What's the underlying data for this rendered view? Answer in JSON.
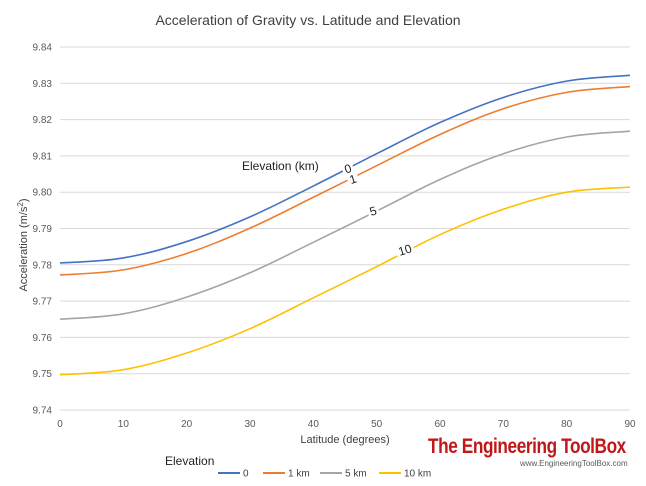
{
  "chart_data": {
    "type": "line",
    "title": "Acceleration of Gravity vs. Latitude and Elevation",
    "xlabel": "Latitude  (degrees)",
    "ylabel_main": "Acceleration  (m/s",
    "ylabel_sup": "2",
    "ylabel_end": ")",
    "xlim": [
      0,
      90
    ],
    "ylim": [
      9.74,
      9.84
    ],
    "xticks": [
      "0",
      "10",
      "20",
      "30",
      "40",
      "50",
      "60",
      "70",
      "80",
      "90"
    ],
    "yticks": [
      "9.74",
      "9.75",
      "9.76",
      "9.77",
      "9.78",
      "9.79",
      "9.80",
      "9.81",
      "9.82",
      "9.83",
      "9.84"
    ],
    "grid": "horizontal",
    "x": [
      0,
      10,
      20,
      30,
      40,
      50,
      60,
      70,
      80,
      90
    ],
    "series": [
      {
        "name": "0",
        "color": "#4472c4",
        "values": [
          9.7805,
          9.7819,
          9.7864,
          9.7932,
          9.8017,
          9.8106,
          9.8192,
          9.8261,
          9.8306,
          9.8322
        ]
      },
      {
        "name": "1 km",
        "color": "#ed7d31",
        "values": [
          9.7772,
          9.7786,
          9.7831,
          9.7901,
          9.7986,
          9.8073,
          9.8159,
          9.823,
          9.8275,
          9.8291
        ]
      },
      {
        "name": "5 km",
        "color": "#a5a5a5",
        "values": [
          9.765,
          9.7665,
          9.7711,
          9.7778,
          9.7862,
          9.7948,
          9.8035,
          9.8106,
          9.8152,
          9.8168
        ]
      },
      {
        "name": "10 km",
        "color": "#ffc000",
        "values": [
          9.7497,
          9.7511,
          9.7557,
          9.7624,
          9.7709,
          9.7795,
          9.7883,
          9.7953,
          9.8,
          9.8014
        ]
      }
    ],
    "annotations": {
      "elevation_label": "Elevation (km)",
      "curve_labels": [
        {
          "text": "0",
          "x": 45.5,
          "y": 9.8062,
          "angle": -18
        },
        {
          "text": "1",
          "x": 46.3,
          "y": 9.8033,
          "angle": -18
        },
        {
          "text": "5",
          "x": 49.5,
          "y": 9.7945,
          "angle": -17
        },
        {
          "text": "10",
          "x": 54.5,
          "y": 9.7838,
          "angle": -17
        }
      ]
    },
    "legend": {
      "title": "Elevation",
      "placement": "bottom",
      "entries": [
        "0",
        "1 km",
        "5 km",
        "10 km"
      ]
    }
  },
  "brand": {
    "name": "The Engineering ToolBox",
    "url": "www.EngineeringToolBox.com",
    "color": "#c01818"
  }
}
